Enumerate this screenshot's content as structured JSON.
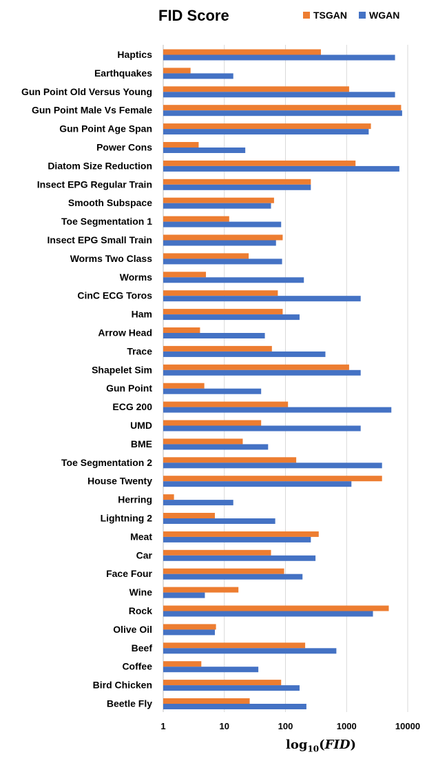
{
  "chart_data": {
    "type": "bar",
    "orientation": "horizontal",
    "title": "FID Score",
    "xlabel": "log10(FID)",
    "xscale": "log",
    "xlim": [
      1,
      10000
    ],
    "xticks": [
      "1",
      "10",
      "100",
      "1000",
      "10000"
    ],
    "grid": "vertical",
    "legend_position": "top-right",
    "categories": [
      "Haptics",
      "Earthquakes",
      "Gun Point Old Versus Young",
      "Gun Point Male Vs Female",
      "Gun Point Age Span",
      "Power Cons",
      "Diatom Size Reduction",
      "Insect EPG Regular Train",
      "Smooth Subspace",
      "Toe Segmentation 1",
      "Insect EPG Small Train",
      "Worms Two Class",
      "Worms",
      "CinC ECG Toros",
      "Ham",
      "Arrow Head",
      "Trace",
      "Shapelet Sim",
      "Gun Point",
      "ECG 200",
      "UMD",
      "BME",
      "Toe Segmentation 2",
      "House Twenty",
      "Herring",
      "Lightning 2",
      "Meat",
      "Car",
      "Face Four",
      "Wine",
      "Rock",
      "Olive Oil",
      "Beef",
      "Coffee",
      "Bird Chicken",
      "Beetle Fly"
    ],
    "series": [
      {
        "name": "TSGAN",
        "color": "#ED7D31",
        "values": [
          380,
          2.8,
          1100,
          7800,
          2500,
          3.8,
          1400,
          260,
          65,
          12,
          90,
          25,
          5,
          75,
          90,
          4,
          60,
          1100,
          4.7,
          110,
          40,
          20,
          150,
          3800,
          1.5,
          7,
          350,
          58,
          95,
          17,
          4900,
          7.3,
          210,
          4.2,
          85,
          26
        ]
      },
      {
        "name": "WGAN",
        "color": "#4472C4",
        "values": [
          6200,
          14,
          6200,
          8100,
          2300,
          22,
          7300,
          260,
          58,
          85,
          70,
          88,
          200,
          1700,
          170,
          46,
          450,
          1700,
          40,
          5400,
          1700,
          52,
          3800,
          1200,
          14,
          68,
          260,
          310,
          190,
          4.8,
          2700,
          7,
          680,
          36,
          170,
          220
        ]
      }
    ]
  }
}
